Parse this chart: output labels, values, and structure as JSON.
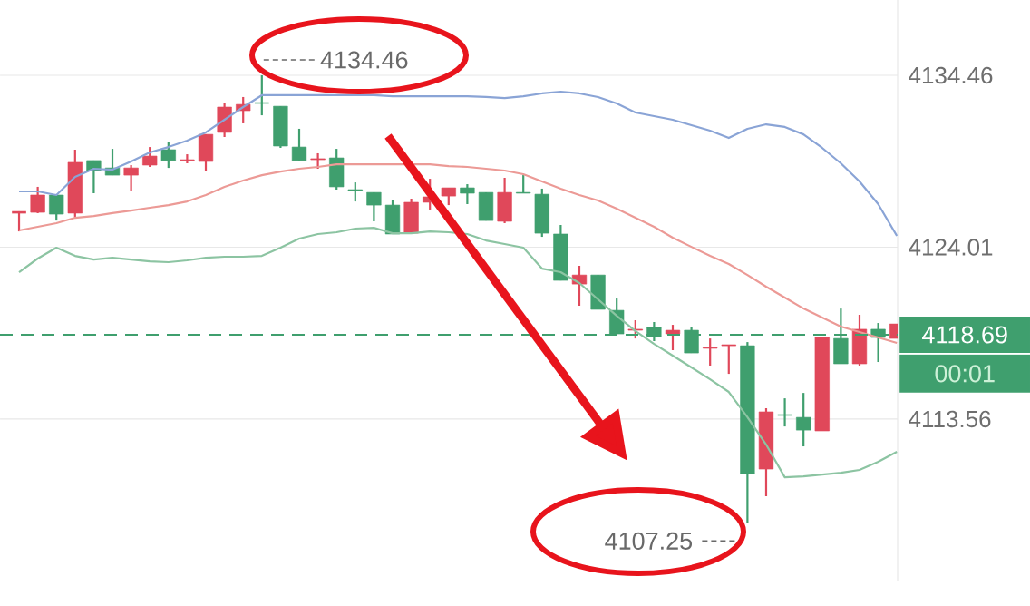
{
  "chart_data": {
    "type": "candlestick",
    "categories": [
      null,
      null,
      null,
      null,
      null,
      null,
      null,
      null,
      null,
      null,
      null,
      null,
      null,
      null,
      null,
      null,
      null,
      null,
      null,
      null,
      null,
      null,
      null,
      null,
      null,
      null,
      null,
      null,
      null,
      null,
      null,
      null,
      null,
      null,
      null,
      null,
      null,
      null,
      null,
      null,
      null,
      null,
      null,
      null,
      null,
      null,
      null,
      null
    ],
    "ohlc": [
      [
        4126.13,
        4126.19,
        4124.97,
        4126.13
      ],
      [
        4126.13,
        4127.68,
        4126.08,
        4127.18
      ],
      [
        4127.18,
        4127.18,
        4125.63,
        4126.02
      ],
      [
        4126.08,
        4129.94,
        4125.86,
        4129.17
      ],
      [
        4129.28,
        4129.28,
        4127.29,
        4128.67
      ],
      [
        4128.83,
        4129.99,
        4128.39,
        4128.39
      ],
      [
        4128.39,
        4129.0,
        4127.45,
        4128.83
      ],
      [
        4129.0,
        4130.1,
        4128.89,
        4129.55
      ],
      [
        4129.94,
        4130.38,
        4128.83,
        4129.28
      ],
      [
        4129.28,
        4129.66,
        4129.11,
        4129.33
      ],
      [
        4129.22,
        4130.87,
        4128.67,
        4130.87
      ],
      [
        4130.99,
        4132.8,
        4130.71,
        4132.53
      ],
      [
        4132.31,
        4133.14,
        4131.54,
        4132.69
      ],
      [
        4132.8,
        4134.46,
        4132.03,
        4132.75
      ],
      [
        4132.58,
        4132.58,
        4130.05,
        4130.16
      ],
      [
        4130.1,
        4131.21,
        4129.28,
        4129.28
      ],
      [
        4129.33,
        4129.72,
        4128.78,
        4129.39
      ],
      [
        4129.44,
        4129.99,
        4127.51,
        4127.68
      ],
      [
        4127.51,
        4127.95,
        4126.79,
        4127.45
      ],
      [
        4127.34,
        4127.34,
        4125.58,
        4126.57
      ],
      [
        4126.57,
        4126.85,
        4124.81,
        4124.81
      ],
      [
        4124.86,
        4126.96,
        4124.86,
        4126.74
      ],
      [
        4126.74,
        4128.17,
        4126.3,
        4127.07
      ],
      [
        4127.12,
        4127.62,
        4126.57,
        4127.62
      ],
      [
        4127.62,
        4127.84,
        4126.63,
        4127.29
      ],
      [
        4127.34,
        4127.34,
        4125.63,
        4125.63
      ],
      [
        4125.58,
        4128.23,
        4125.47,
        4127.34
      ],
      [
        4127.34,
        4128.39,
        4127.29,
        4127.29
      ],
      [
        4127.23,
        4127.57,
        4124.64,
        4124.86
      ],
      [
        4124.81,
        4125.36,
        4121.99,
        4121.99
      ],
      [
        4121.77,
        4122.88,
        4120.45,
        4122.32
      ],
      [
        4122.32,
        4122.32,
        4120.23,
        4120.23
      ],
      [
        4120.17,
        4120.89,
        4118.74,
        4118.74
      ],
      [
        4118.96,
        4119.57,
        4118.46,
        4119.02
      ],
      [
        4119.13,
        4119.46,
        4118.3,
        4118.57
      ],
      [
        4118.74,
        4119.29,
        4117.75,
        4118.96
      ],
      [
        4118.96,
        4119.13,
        4117.58,
        4117.58
      ],
      [
        4117.86,
        4118.46,
        4116.81,
        4117.91
      ],
      [
        4118.02,
        4118.08,
        4116.31,
        4118.08
      ],
      [
        4118.02,
        4118.24,
        4107.25,
        4110.24
      ],
      [
        4110.52,
        4114.22,
        4108.87,
        4114.0
      ],
      [
        4113.83,
        4114.82,
        4113.11,
        4113.78
      ],
      [
        4113.66,
        4115.15,
        4111.9,
        4112.89
      ],
      [
        4112.84,
        4118.52,
        4112.84,
        4118.52
      ],
      [
        4118.46,
        4120.28,
        4116.92,
        4116.92
      ],
      [
        4116.92,
        4119.9,
        4116.81,
        4119.02
      ],
      [
        4119.02,
        4119.4,
        4117.03,
        4118.52
      ],
      [
        4118.46,
        4119.35,
        4118.46,
        4119.35
      ]
    ],
    "colors": [
      "#e0485a",
      "#e0485a",
      "#3f9f6e",
      "#e0485a",
      "#3f9f6e",
      "#3f9f6e",
      "#e0485a",
      "#e0485a",
      "#3f9f6e",
      "#e0485a",
      "#e0485a",
      "#e0485a",
      "#e0485a",
      "#3f9f6e",
      "#3f9f6e",
      "#3f9f6e",
      "#e0485a",
      "#3f9f6e",
      "#3f9f6e",
      "#3f9f6e",
      "#3f9f6e",
      "#e0485a",
      "#e0485a",
      "#e0485a",
      "#3f9f6e",
      "#3f9f6e",
      "#e0485a",
      "#3f9f6e",
      "#3f9f6e",
      "#3f9f6e",
      "#e0485a",
      "#3f9f6e",
      "#3f9f6e",
      "#e0485a",
      "#3f9f6e",
      "#e0485a",
      "#3f9f6e",
      "#e0485a",
      "#e0485a",
      "#3f9f6e",
      "#e0485a",
      "#3f9f6e",
      "#3f9f6e",
      "#e0485a",
      "#3f9f6e",
      "#e0485a",
      "#3f9f6e",
      "#e0485a"
    ],
    "series": [
      {
        "type": "line",
        "color": "#8aa4d6",
        "values": [
          4127.4,
          4127.4,
          4127.18,
          4128.28,
          4128.78,
          4128.72,
          4129.22,
          4129.77,
          4130.1,
          4130.49,
          4130.99,
          4131.76,
          4132.53,
          4133.25,
          4133.25,
          4133.25,
          4133.25,
          4133.25,
          4133.25,
          4133.25,
          4133.19,
          4133.19,
          4133.19,
          4133.19,
          4133.19,
          4133.14,
          4133.08,
          4133.19,
          4133.36,
          4133.47,
          4133.36,
          4133.14,
          4132.75,
          4132.2,
          4131.98,
          4131.76,
          4131.43,
          4131.1,
          4130.65,
          4131.21,
          4131.48,
          4131.32,
          4130.87,
          4130.05,
          4129.11,
          4128.01,
          4126.63,
          4124.7
        ]
      },
      {
        "type": "line",
        "color": "#ec9a96",
        "values": [
          4125.03,
          4125.25,
          4125.47,
          4125.8,
          4125.91,
          4126.08,
          4126.24,
          4126.41,
          4126.57,
          4126.79,
          4127.18,
          4127.68,
          4128.06,
          4128.39,
          4128.61,
          4128.78,
          4128.89,
          4129.05,
          4129.05,
          4129.05,
          4129.05,
          4129.05,
          4129.05,
          4128.94,
          4128.89,
          4128.78,
          4128.67,
          4128.45,
          4128.01,
          4127.57,
          4127.18,
          4126.85,
          4126.35,
          4125.8,
          4125.25,
          4124.59,
          4124.03,
          4123.48,
          4122.99,
          4122.32,
          4121.61,
          4120.95,
          4120.28,
          4119.73,
          4119.18,
          4118.85,
          4118.52,
          4118.19
        ]
      },
      {
        "type": "line",
        "color": "#8cc4a2",
        "values": [
          4122.49,
          4123.32,
          4123.98,
          4123.48,
          4123.26,
          4123.37,
          4123.26,
          4123.15,
          4123.1,
          4123.21,
          4123.37,
          4123.43,
          4123.43,
          4123.48,
          4123.98,
          4124.53,
          4124.81,
          4124.92,
          4125.14,
          4125.19,
          4124.86,
          4124.86,
          4124.97,
          4124.92,
          4124.81,
          4124.42,
          4124.2,
          4123.98,
          4122.71,
          4122.49,
          4121.83,
          4120.84,
          4119.84,
          4118.91,
          4118.13,
          4117.42,
          4116.7,
          4115.98,
          4115.21,
          4113.67,
          4112.01,
          4110.02,
          4110.08,
          4110.19,
          4110.3,
          4110.47,
          4110.96,
          4111.57
        ]
      }
    ],
    "ylim": [
      4103.74,
      4139.04
    ],
    "yticks": [
      4134.46,
      4124.01,
      4113.56
    ],
    "grid": "y",
    "tick_labels": "y",
    "ref_lines": [
      {
        "axis": "y",
        "value": 4118.69,
        "label": "4118.69",
        "color": "#3f9f6e",
        "line_style": "dashed"
      }
    ],
    "annotations": [
      "00:01",
      "4134.46",
      "4107.25"
    ]
  }
}
